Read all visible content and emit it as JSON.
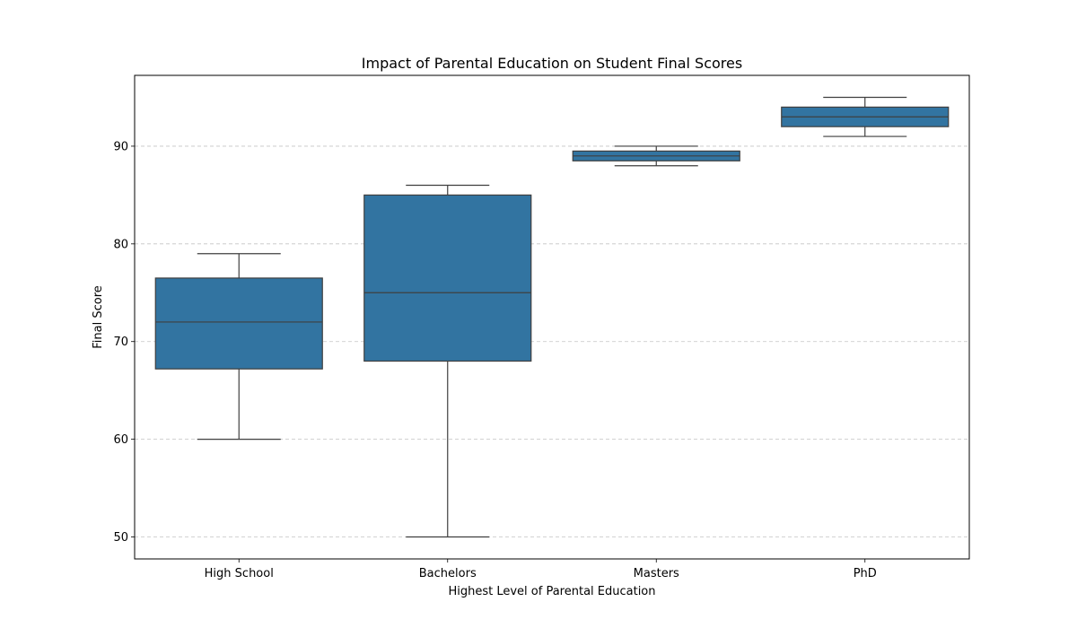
{
  "chart_data": {
    "type": "boxplot",
    "title": "Impact of Parental Education on Student Final Scores",
    "xlabel": "Highest Level of Parental Education",
    "ylabel": "Final Score",
    "categories": [
      "High School",
      "Bachelors",
      "Masters",
      "PhD"
    ],
    "boxes": [
      {
        "category": "High School",
        "whisker_low": 60,
        "q1": 67.2,
        "median": 72,
        "q3": 76.5,
        "whisker_high": 79
      },
      {
        "category": "Bachelors",
        "whisker_low": 50,
        "q1": 68,
        "median": 75,
        "q3": 85,
        "whisker_high": 86
      },
      {
        "category": "Masters",
        "whisker_low": 88,
        "q1": 88.5,
        "median": 89,
        "q3": 89.5,
        "whisker_high": 90
      },
      {
        "category": "PhD",
        "whisker_low": 91,
        "q1": 92,
        "median": 93,
        "q3": 94,
        "whisker_high": 95
      }
    ],
    "ylim": [
      47.75,
      97.25
    ],
    "yticks": [
      50,
      60,
      70,
      80,
      90
    ],
    "ytick_labels": [
      "50",
      "60",
      "70",
      "80",
      "90"
    ],
    "grid": "y dashed",
    "colors": {
      "box_fill": "#3274a1",
      "line": "#3f3f3f",
      "grid": "#c4c4c4",
      "axes": "#000000"
    }
  }
}
